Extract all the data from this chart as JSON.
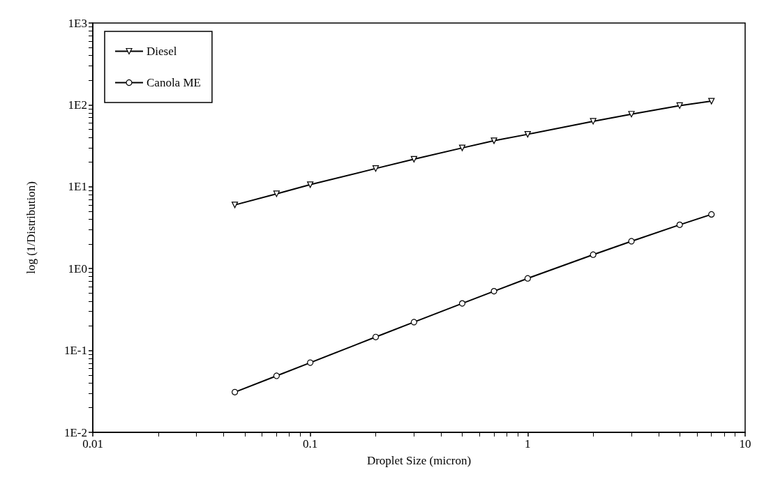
{
  "chart_data": {
    "type": "line",
    "xlabel": "Droplet Size (micron)",
    "ylabel": "log (1/Distribution)",
    "log": "xy",
    "grid": false,
    "legend": "top left",
    "xlim": [
      0.01,
      10
    ],
    "xticks": [
      0.01,
      0.1,
      1,
      10
    ],
    "ylim": [
      0.01,
      1000
    ],
    "yticks": [
      {
        "value": 0.01,
        "label": "1E-2"
      },
      {
        "value": 0.1,
        "label": "1E-1"
      },
      {
        "value": 1,
        "label": "1E0"
      },
      {
        "value": 10,
        "label": "1E1"
      },
      {
        "value": 100,
        "label": "1E2"
      },
      {
        "value": 1000,
        "label": "1E3"
      }
    ],
    "x": [
      0.045,
      0.07,
      0.1,
      0.2,
      0.3,
      0.5,
      0.7,
      1,
      2,
      3,
      5,
      7
    ],
    "series": [
      {
        "name": "Diesel",
        "color": "#000000",
        "marker": "triangle",
        "values": [
          6.0,
          8.2,
          10.6,
          16.7,
          21.7,
          29.8,
          36.5,
          43.7,
          63,
          77,
          98,
          111
        ]
      },
      {
        "name": "Canola ME",
        "color": "#000000",
        "marker": "circle",
        "values": [
          0.031,
          0.049,
          0.071,
          0.146,
          0.222,
          0.376,
          0.53,
          0.76,
          1.48,
          2.16,
          3.43,
          4.6
        ]
      }
    ]
  }
}
